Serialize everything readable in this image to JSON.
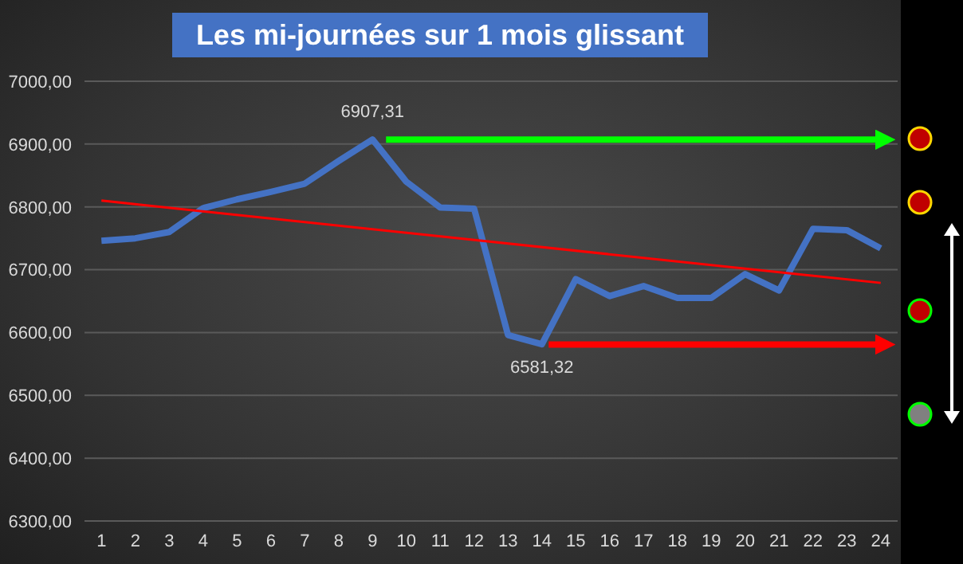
{
  "chart_data": {
    "type": "line",
    "title": "Les mi-journées sur 1 mois glissant",
    "xlim": [
      0.5,
      24.5
    ],
    "xticks": [
      1,
      2,
      3,
      4,
      5,
      6,
      7,
      8,
      9,
      10,
      11,
      12,
      13,
      14,
      15,
      16,
      17,
      18,
      19,
      20,
      21,
      22,
      23,
      24
    ],
    "ylim": [
      6300,
      7000
    ],
    "yticks": [
      {
        "value": 6300,
        "label": "6300,00"
      },
      {
        "value": 6400,
        "label": "6400,00"
      },
      {
        "value": 6500,
        "label": "6500,00"
      },
      {
        "value": 6600,
        "label": "6600,00"
      },
      {
        "value": 6700,
        "label": "6700,00"
      },
      {
        "value": 6800,
        "label": "6800,00"
      },
      {
        "value": 6900,
        "label": "6900,00"
      },
      {
        "value": 7000,
        "label": "7000,00"
      }
    ],
    "grid": "y",
    "legend": false,
    "marker": "none",
    "line_style": "solid",
    "series": [
      {
        "color": "#4472c4",
        "x": [
          1,
          2,
          3,
          4,
          5,
          6,
          7,
          8,
          9,
          10,
          11,
          12,
          13,
          14,
          15,
          16,
          17,
          18,
          19,
          20,
          21,
          22,
          23,
          24
        ],
        "values": [
          6746,
          6750,
          6760,
          6798,
          6812,
          6824,
          6837,
          6873,
          6907.31,
          6840,
          6799,
          6797,
          6596,
          6581.32,
          6685,
          6658,
          6674,
          6655,
          6655,
          6693,
          6667,
          6765,
          6763,
          6734
        ],
        "value_labels": [
          null,
          null,
          null,
          null,
          null,
          null,
          null,
          null,
          "6907,31",
          null,
          null,
          null,
          null,
          "6581,32",
          null,
          null,
          null,
          null,
          null,
          null,
          null,
          null,
          null,
          null
        ]
      },
      {
        "color": "#ff0000",
        "x": [
          1,
          24
        ],
        "values": [
          6810,
          6679
        ]
      },
      {
        "color": "#00ff00",
        "x": [
          9.4,
          24.2
        ],
        "values": [
          6907,
          6907
        ]
      },
      {
        "color": "#ff0000",
        "x": [
          14.2,
          24.2
        ],
        "values": [
          6581,
          6581
        ]
      }
    ]
  }
}
